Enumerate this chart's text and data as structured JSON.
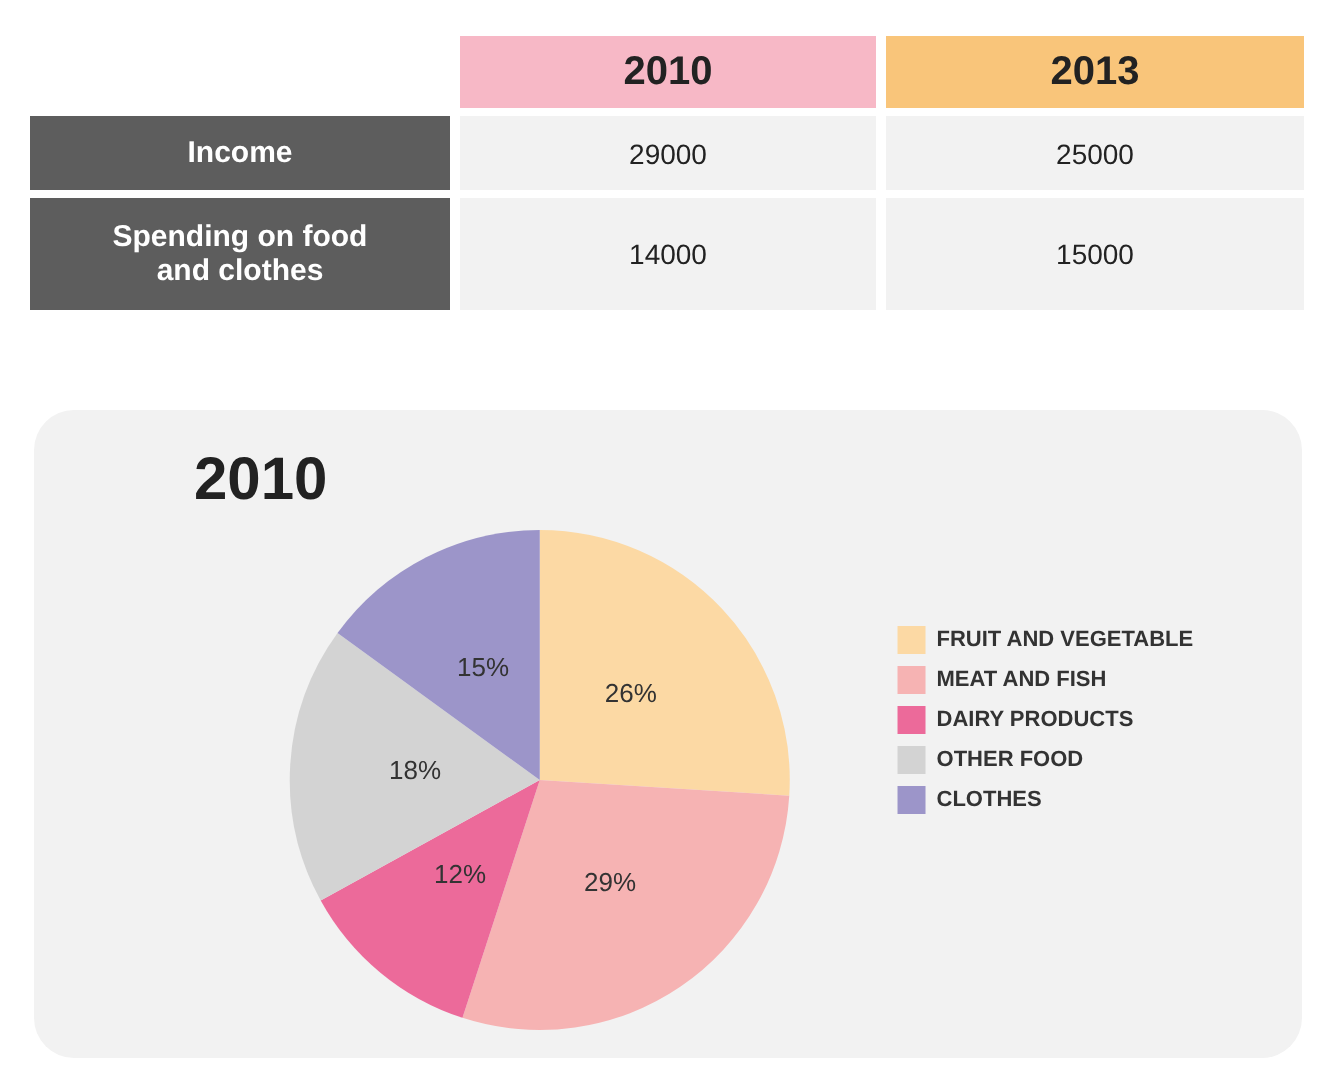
{
  "chart_data": [
    {
      "type": "other",
      "categories": [
        "Income",
        "Spending on food and clothes"
      ],
      "data_labels": true,
      "series": [
        {
          "name": "2010",
          "values": [
            29000,
            14000
          ]
        },
        {
          "name": "2013",
          "values": [
            25000,
            15000
          ]
        }
      ]
    },
    {
      "type": "pie",
      "title": "2010",
      "categories": [
        "FRUIT AND VEGETABLE",
        "MEAT AND FISH",
        "DAIRY PRODUCTS",
        "OTHER FOOD",
        "CLOTHES"
      ],
      "values": [
        26,
        29,
        12,
        18,
        15
      ],
      "colors": [
        "#fcd9a4",
        "#f6b3b3",
        "#ec6a9a",
        "#d3d3d3",
        "#9c95c9"
      ],
      "value_labels": [
        "26%",
        "29%",
        "12%",
        "18%",
        "15%"
      ],
      "legend": "right"
    }
  ]
}
